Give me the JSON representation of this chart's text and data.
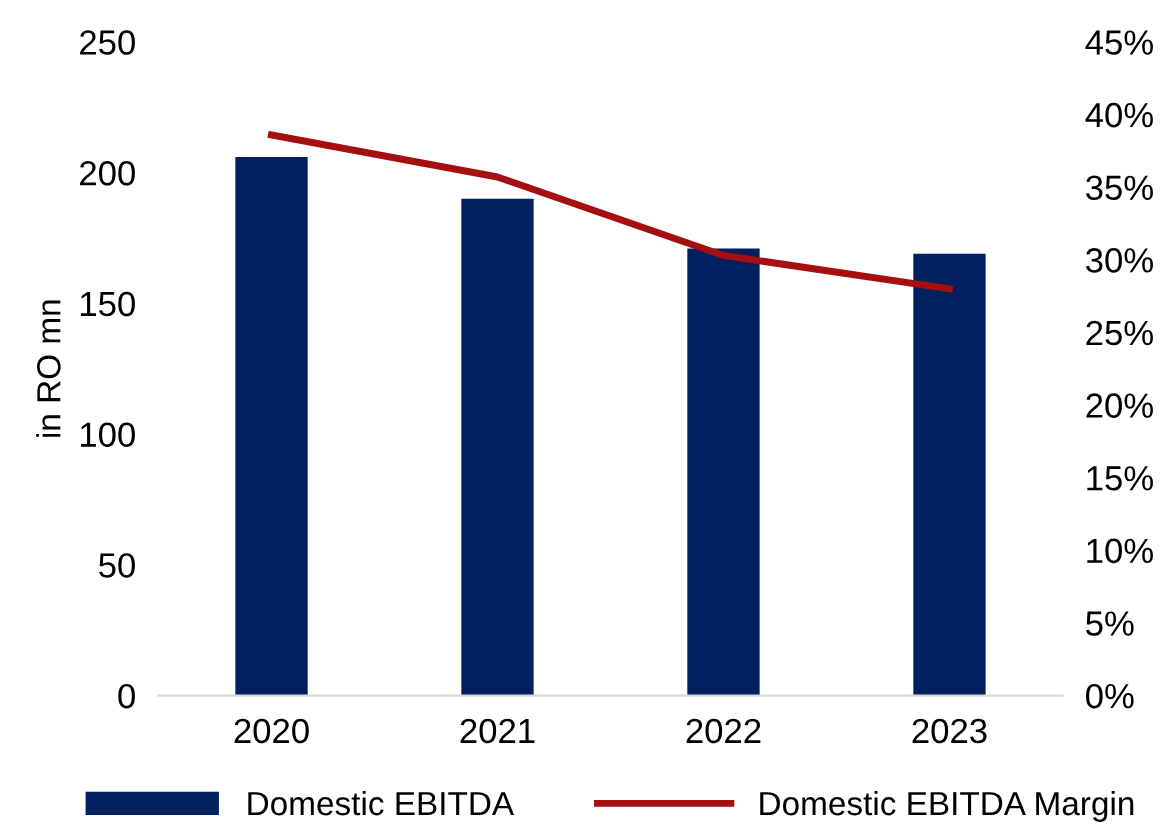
{
  "chart_data": {
    "type": "bar",
    "categories": [
      "2020",
      "2021",
      "2022",
      "2023"
    ],
    "ylabel": "in RO mn",
    "ylim": [
      0,
      250
    ],
    "yticks": [
      0,
      50,
      100,
      150,
      200,
      250
    ],
    "y2lim": [
      0,
      45
    ],
    "y2ticks": [
      {
        "value": 0,
        "label": "0%"
      },
      {
        "value": 5,
        "label": "5%"
      },
      {
        "value": 10,
        "label": "10%"
      },
      {
        "value": 15,
        "label": "15%"
      },
      {
        "value": 20,
        "label": "20%"
      },
      {
        "value": 25,
        "label": "25%"
      },
      {
        "value": 30,
        "label": "30%"
      },
      {
        "value": 35,
        "label": "35%"
      },
      {
        "value": 40,
        "label": "40%"
      },
      {
        "value": 45,
        "label": "45%"
      }
    ],
    "grid": false,
    "legend": "bottom",
    "series": [
      {
        "name": "Domestic EBITDA",
        "color": "#002060",
        "values": [
          206,
          190,
          171,
          169
        ]
      },
      {
        "name": "Domestic EBITDA Margin",
        "type": "line",
        "axis": "y2",
        "color": "#a50f0f",
        "values": [
          38.6,
          35.7,
          30.3,
          28.0
        ]
      }
    ]
  }
}
